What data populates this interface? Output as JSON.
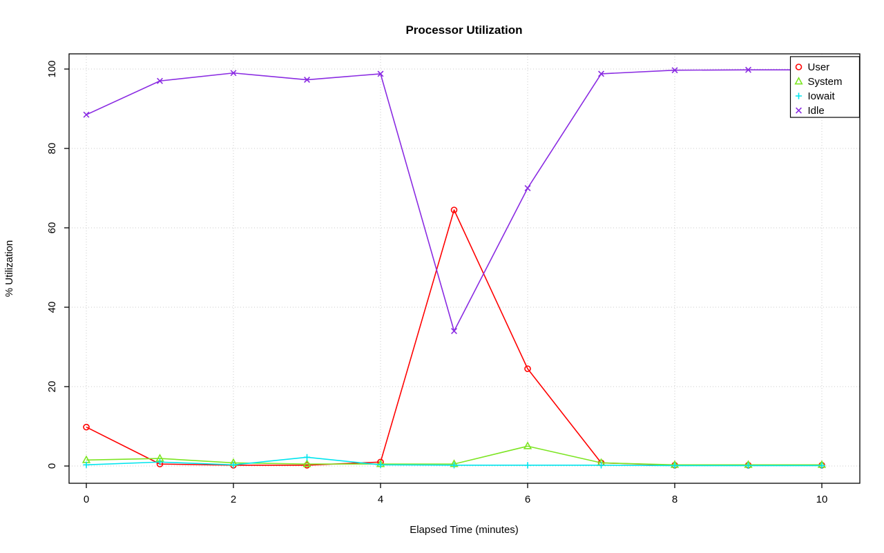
{
  "chart_data": {
    "type": "line",
    "title": "Processor Utilization",
    "xlabel": "Elapsed Time (minutes)",
    "ylabel": "% Utilization",
    "xlim": [
      0,
      10
    ],
    "ylim": [
      0,
      100
    ],
    "xticks": [
      0,
      2,
      4,
      6,
      8,
      10
    ],
    "yticks": [
      0,
      20,
      40,
      60,
      80,
      100
    ],
    "grid": true,
    "grid_style": "dotted",
    "grid_color": "#c8c8c8",
    "background": "#ffffff",
    "legend_position": "top-right",
    "x": [
      0,
      1,
      2,
      3,
      4,
      5,
      6,
      7,
      8,
      9,
      10
    ],
    "series": [
      {
        "name": "User",
        "color": "#ff0000",
        "marker": "circle",
        "values": [
          9.8,
          0.5,
          0.2,
          0.2,
          1.0,
          64.5,
          24.5,
          0.8,
          0.2,
          0.2,
          0.2
        ]
      },
      {
        "name": "System",
        "color": "#7ce522",
        "marker": "triangle",
        "values": [
          1.5,
          1.9,
          0.8,
          0.5,
          0.5,
          0.5,
          5.0,
          0.8,
          0.3,
          0.3,
          0.3
        ]
      },
      {
        "name": "Iowait",
        "color": "#00e5ee",
        "marker": "plus",
        "values": [
          0.3,
          1.0,
          0.3,
          2.2,
          0.3,
          0.2,
          0.2,
          0.2,
          0.1,
          0.1,
          0.1
        ]
      },
      {
        "name": "Idle",
        "color": "#8a2be2",
        "marker": "x",
        "values": [
          88.5,
          97.0,
          99.0,
          97.3,
          98.8,
          34.0,
          70.0,
          98.8,
          99.7,
          99.8,
          99.8
        ]
      }
    ]
  }
}
